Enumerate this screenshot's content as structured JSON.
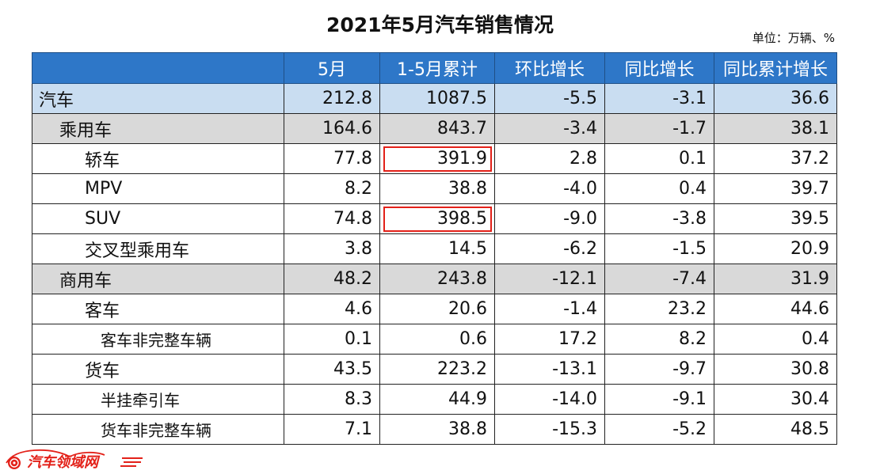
{
  "title": "2021年5月汽车销售情况",
  "unit": "单位：万辆、%",
  "watermark": "汽车领域网",
  "colors": {
    "header_bg": "#2e77c8",
    "total_row_bg": "#c9ddf1",
    "category_row_bg": "#d9d9d9",
    "highlight": "#e32119",
    "logo": "#e32119"
  },
  "highlighted_cells": [
    {
      "row": "轿车",
      "column": "1-5月累计"
    },
    {
      "row": "SUV",
      "column": "1-5月累计"
    }
  ],
  "chart_data": {
    "type": "table",
    "title": "2021年5月汽车销售情况",
    "unit": "单位：万辆、%",
    "columns": [
      "",
      "5月",
      "1-5月累计",
      "环比增长",
      "同比增长",
      "同比累计增长"
    ],
    "rows": [
      {
        "name": "汽车",
        "level": 0,
        "values": [
          "212.8",
          "1087.5",
          "-5.5",
          "-3.1",
          "36.6"
        ]
      },
      {
        "name": "乘用车",
        "level": 1,
        "values": [
          "164.6",
          "843.7",
          "-3.4",
          "-1.7",
          "38.1"
        ]
      },
      {
        "name": "轿车",
        "level": 2,
        "values": [
          "77.8",
          "391.9",
          "2.8",
          "0.1",
          "37.2"
        ]
      },
      {
        "name": "MPV",
        "level": 2,
        "values": [
          "8.2",
          "38.8",
          "-4.0",
          "0.4",
          "39.7"
        ]
      },
      {
        "name": "SUV",
        "level": 2,
        "values": [
          "74.8",
          "398.5",
          "-9.0",
          "-3.8",
          "39.5"
        ]
      },
      {
        "name": "交叉型乘用车",
        "level": 2,
        "values": [
          "3.8",
          "14.5",
          "-6.2",
          "-1.5",
          "20.9"
        ]
      },
      {
        "name": "商用车",
        "level": 1,
        "values": [
          "48.2",
          "243.8",
          "-12.1",
          "-7.4",
          "31.9"
        ]
      },
      {
        "name": "客车",
        "level": 2,
        "values": [
          "4.6",
          "20.6",
          "-1.4",
          "23.2",
          "44.6"
        ]
      },
      {
        "name": "客车非完整车辆",
        "level": 3,
        "values": [
          "0.1",
          "0.6",
          "17.2",
          "8.2",
          "0.4"
        ]
      },
      {
        "name": "货车",
        "level": 2,
        "values": [
          "43.5",
          "223.2",
          "-13.1",
          "-9.7",
          "30.8"
        ]
      },
      {
        "name": "半挂牵引车",
        "level": 3,
        "values": [
          "8.3",
          "44.9",
          "-14.0",
          "-9.1",
          "30.4"
        ]
      },
      {
        "name": "货车非完整车辆",
        "level": 3,
        "values": [
          "7.1",
          "38.8",
          "-15.3",
          "-5.2",
          "48.5"
        ]
      }
    ]
  }
}
